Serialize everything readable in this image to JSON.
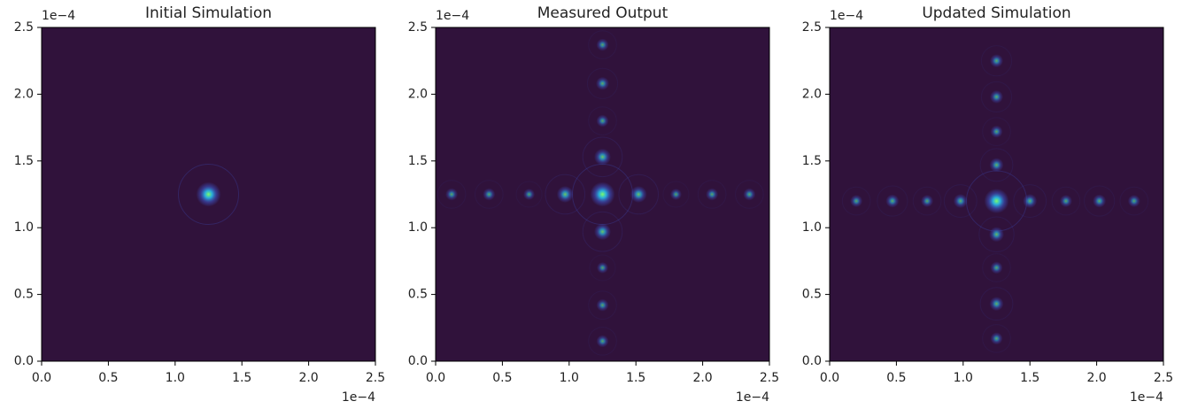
{
  "chart_data": [
    {
      "type": "image",
      "title": "Initial Simulation",
      "background": "#30123b",
      "colors": [
        "#7dfc6a",
        "#28bceb",
        "#3e5bd6"
      ],
      "xlim": [
        0,
        0.00025
      ],
      "ylim": [
        0,
        0.00025
      ],
      "xticks": [
        {
          "value": 0,
          "label": "0.0"
        },
        {
          "value": 5e-05,
          "label": "0.5"
        },
        {
          "value": 0.0001,
          "label": "1.0"
        },
        {
          "value": 0.00015,
          "label": "1.5"
        },
        {
          "value": 0.0002,
          "label": "2.0"
        },
        {
          "value": 0.00025,
          "label": "2.5"
        }
      ],
      "yticks": [
        {
          "value": 0,
          "label": "0.0"
        },
        {
          "value": 5e-05,
          "label": "0.5"
        },
        {
          "value": 0.0001,
          "label": "1.0"
        },
        {
          "value": 0.00015,
          "label": "1.5"
        },
        {
          "value": 0.0002,
          "label": "2.0"
        },
        {
          "value": 0.00025,
          "label": "2.5"
        }
      ],
      "x_offset_label": "1e−4",
      "y_offset_label": "1e−4",
      "peaks": {
        "x": [
          0.000125
        ],
        "y": [
          0.000125
        ],
        "intensity": [
          1
        ]
      }
    },
    {
      "type": "image",
      "title": "Measured Output",
      "background": "#30123b",
      "colors": [
        "#7dfc6a",
        "#28bceb",
        "#3e5bd6"
      ],
      "xlim": [
        0,
        0.00025
      ],
      "ylim": [
        0,
        0.00025
      ],
      "xticks": [
        {
          "value": 0,
          "label": "0.0"
        },
        {
          "value": 5e-05,
          "label": "0.5"
        },
        {
          "value": 0.0001,
          "label": "1.0"
        },
        {
          "value": 0.00015,
          "label": "1.5"
        },
        {
          "value": 0.0002,
          "label": "2.0"
        },
        {
          "value": 0.00025,
          "label": "2.5"
        }
      ],
      "yticks": [
        {
          "value": 0,
          "label": "0.0"
        },
        {
          "value": 5e-05,
          "label": "0.5"
        },
        {
          "value": 0.0001,
          "label": "1.0"
        },
        {
          "value": 0.00015,
          "label": "1.5"
        },
        {
          "value": 0.0002,
          "label": "2.0"
        },
        {
          "value": 0.00025,
          "label": "2.5"
        }
      ],
      "x_offset_label": "1e−4",
      "y_offset_label": "1e−4",
      "peaks": {
        "x": [
          0.000125,
          1.2e-05,
          4e-05,
          7e-05,
          9.7e-05,
          0.000152,
          0.00018,
          0.000207,
          0.000235,
          0.000125,
          0.000125,
          0.000125,
          0.000125,
          0.000125,
          0.000125,
          0.000125,
          0.000125
        ],
        "y": [
          0.000125,
          0.000125,
          0.000125,
          0.000125,
          0.000125,
          0.000125,
          0.000125,
          0.000125,
          0.000125,
          1.5e-05,
          4.2e-05,
          7e-05,
          9.7e-05,
          0.000153,
          0.00018,
          0.000208,
          0.000237
        ],
        "intensity": [
          1,
          0.3,
          0.3,
          0.25,
          0.55,
          0.55,
          0.25,
          0.3,
          0.3,
          0.3,
          0.3,
          0.25,
          0.55,
          0.55,
          0.3,
          0.35,
          0.3
        ]
      }
    },
    {
      "type": "image",
      "title": "Updated Simulation",
      "background": "#30123b",
      "colors": [
        "#7dfc6a",
        "#28bceb",
        "#3e5bd6"
      ],
      "xlim": [
        0,
        0.00025
      ],
      "ylim": [
        0,
        0.00025
      ],
      "xticks": [
        {
          "value": 0,
          "label": "0.0"
        },
        {
          "value": 5e-05,
          "label": "0.5"
        },
        {
          "value": 0.0001,
          "label": "1.0"
        },
        {
          "value": 0.00015,
          "label": "1.5"
        },
        {
          "value": 0.0002,
          "label": "2.0"
        },
        {
          "value": 0.00025,
          "label": "2.5"
        }
      ],
      "yticks": [
        {
          "value": 0,
          "label": "0.0"
        },
        {
          "value": 5e-05,
          "label": "0.5"
        },
        {
          "value": 0.0001,
          "label": "1.0"
        },
        {
          "value": 0.00015,
          "label": "1.5"
        },
        {
          "value": 0.0002,
          "label": "2.0"
        },
        {
          "value": 0.00025,
          "label": "2.5"
        }
      ],
      "x_offset_label": "1e−4",
      "y_offset_label": "1e−4",
      "peaks": {
        "x": [
          0.000125,
          2e-05,
          4.7e-05,
          7.3e-05,
          9.8e-05,
          0.00015,
          0.000177,
          0.000202,
          0.000228,
          0.000125,
          0.000125,
          0.000125,
          0.000125,
          0.000125,
          0.000125,
          0.000125,
          0.000125
        ],
        "y": [
          0.00012,
          0.00012,
          0.00012,
          0.00012,
          0.00012,
          0.00012,
          0.00012,
          0.00012,
          0.00012,
          1.7e-05,
          4.3e-05,
          7e-05,
          9.5e-05,
          0.000147,
          0.000172,
          0.000198,
          0.000225
        ],
        "intensity": [
          1,
          0.3,
          0.35,
          0.3,
          0.4,
          0.4,
          0.3,
          0.35,
          0.3,
          0.3,
          0.4,
          0.3,
          0.45,
          0.4,
          0.3,
          0.35,
          0.35
        ]
      }
    }
  ]
}
